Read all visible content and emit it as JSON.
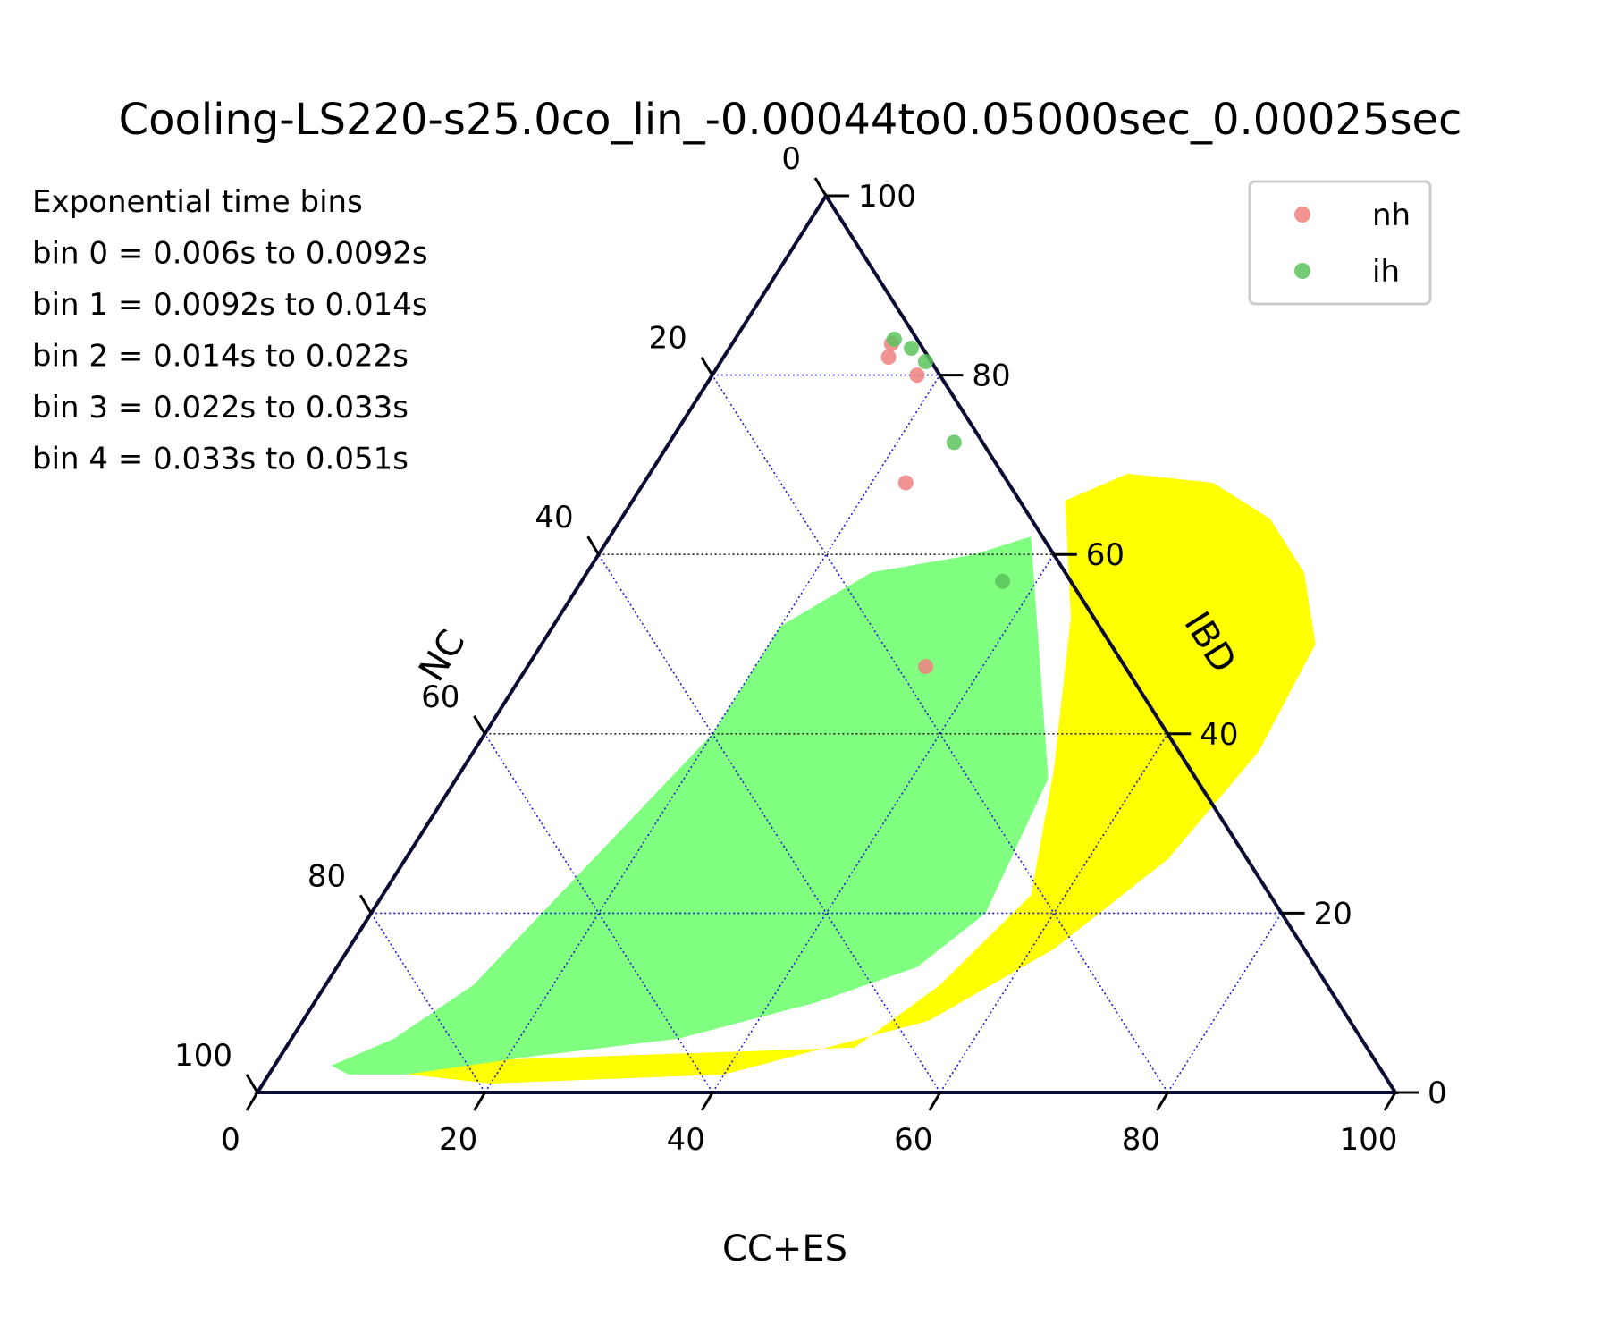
{
  "chart_data": {
    "type": "scatter",
    "subtype": "ternary",
    "title": "Cooling-LS220-s25.0co_lin_-0.00044to0.05000sec_0.00025sec",
    "axes": {
      "bottom": {
        "label": "CC+ES",
        "ticks": [
          "0",
          "20",
          "40",
          "60",
          "80",
          "100"
        ]
      },
      "left": {
        "label": "NC",
        "ticks": [
          "0",
          "20",
          "40",
          "60",
          "80",
          "100"
        ]
      },
      "right": {
        "label": "IBD",
        "ticks": [
          "0",
          "20",
          "40",
          "60",
          "80",
          "100"
        ]
      }
    },
    "axis_range": [
      0,
      100
    ],
    "grid": true,
    "annotations": [
      "Exponential time bins",
      "bin 0 = 0.006s to 0.0092s",
      "bin 1 = 0.0092s to 0.014s",
      "bin 2 = 0.014s to 0.022s",
      "bin 3 = 0.022s to 0.033s",
      "bin 4 = 0.033s to 0.051s"
    ],
    "legend_position": "top-right",
    "regions": [
      {
        "color": "#ffff00",
        "points": [
          [
            3,
            5
          ],
          [
            1,
            20
          ],
          [
            2,
            40
          ],
          [
            8,
            55
          ],
          [
            16,
            62
          ],
          [
            26,
            67
          ],
          [
            38,
            69
          ],
          [
            50,
            68
          ],
          [
            58,
            63
          ],
          [
            64,
            57
          ],
          [
            68,
            50
          ],
          [
            69,
            42
          ],
          [
            66,
            38
          ],
          [
            53,
            45
          ],
          [
            36,
            52
          ],
          [
            22,
            57
          ],
          [
            12,
            54
          ],
          [
            5,
            50
          ]
        ]
      },
      {
        "color": "#80ff80",
        "points": [
          [
            3,
            5
          ],
          [
            6,
            9
          ],
          [
            12,
            13
          ],
          [
            28,
            17
          ],
          [
            40,
            20
          ],
          [
            52,
            20
          ],
          [
            58,
            25
          ],
          [
            60,
            33
          ],
          [
            62,
            37
          ],
          [
            35,
            52
          ],
          [
            20,
            54
          ],
          [
            14,
            51
          ],
          [
            10,
            44
          ],
          [
            6,
            34
          ],
          [
            4,
            22
          ],
          [
            2,
            12
          ],
          [
            2,
            7
          ]
        ]
      }
    ],
    "series": [
      {
        "name": "nh",
        "color": "#f08080",
        "points": [
          [
            14.0,
            83.5
          ],
          [
            14.5,
            82.0
          ],
          [
            18.0,
            80.0
          ],
          [
            23.0,
            68.0
          ],
          [
            35.0,
            47.5
          ]
        ]
      },
      {
        "name": "ih",
        "color": "#5cc45c",
        "points": [
          [
            14.0,
            84.0
          ],
          [
            16.0,
            83.0
          ],
          [
            18.0,
            81.5
          ],
          [
            25.0,
            72.5
          ],
          [
            37.0,
            57.0
          ]
        ]
      }
    ]
  }
}
